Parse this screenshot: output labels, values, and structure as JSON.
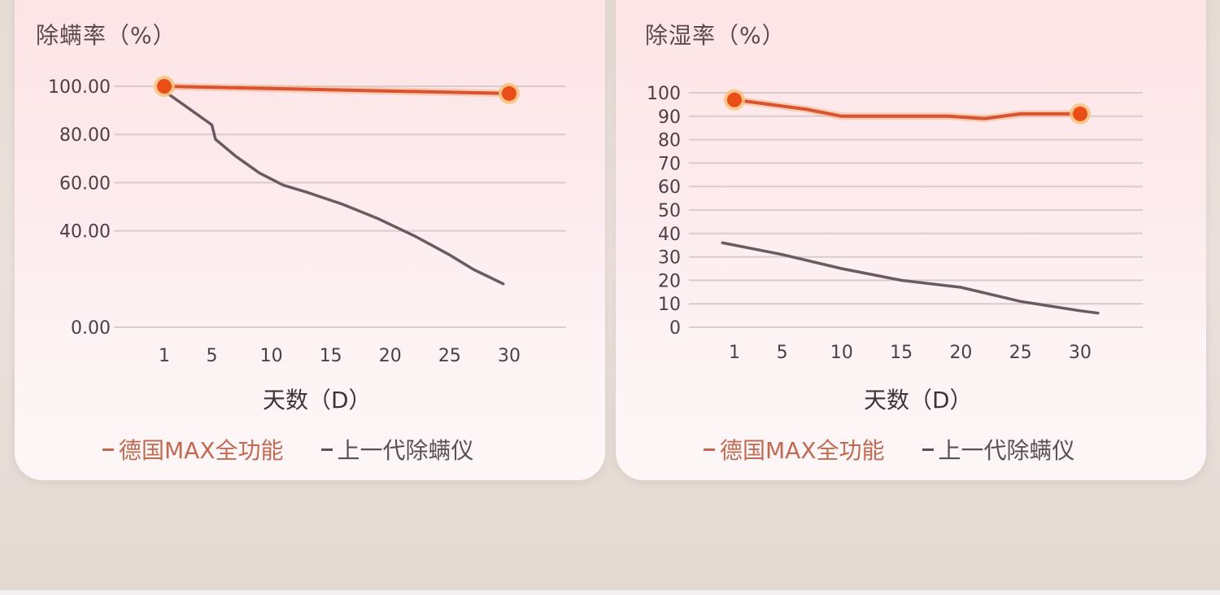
{
  "chart_data": [
    {
      "type": "line",
      "title": "除螨率（%）",
      "xlabel": "天数（D）",
      "ylabel": "除螨率（%）",
      "x_ticks": [
        "1",
        "5",
        "10",
        "15",
        "20",
        "25",
        "30"
      ],
      "y_ticks": [
        "0.00",
        "40.00",
        "60.00",
        "80.00",
        "100.00"
      ],
      "y_tick_values": [
        0,
        40,
        60,
        80,
        100
      ],
      "ylim": [
        0,
        100
      ],
      "grid": true,
      "legend_position": "bottom",
      "series": [
        {
          "name": "德国MAX全功能",
          "color": "#d9532f",
          "marker_color": "#ea4e18",
          "x": [
            1,
            30
          ],
          "values": [
            100,
            97
          ]
        },
        {
          "name": "上一代除螨仪",
          "color": "#6b5a62",
          "x": [
            1,
            3,
            5,
            5.3,
            7,
            9,
            11,
            13,
            16,
            19,
            22,
            25,
            27,
            29.5
          ],
          "values": [
            98,
            91,
            84,
            78,
            71,
            64,
            59,
            56,
            51,
            45,
            38,
            30,
            24,
            18
          ]
        }
      ]
    },
    {
      "type": "line",
      "title": "除湿率（%）",
      "xlabel": "天数（D）",
      "ylabel": "除湿率（%）",
      "x_ticks": [
        "1",
        "5",
        "10",
        "15",
        "20",
        "25",
        "30"
      ],
      "y_ticks": [
        "0",
        "10",
        "20",
        "30",
        "40",
        "50",
        "60",
        "70",
        "80",
        "90",
        "100"
      ],
      "y_tick_values": [
        0,
        10,
        20,
        30,
        40,
        50,
        60,
        70,
        80,
        90,
        100
      ],
      "ylim": [
        0,
        100
      ],
      "grid": true,
      "legend_position": "bottom",
      "series": [
        {
          "name": "德国MAX全功能",
          "color": "#d9532f",
          "marker_color": "#ea4e18",
          "x": [
            1,
            4,
            7,
            10,
            13,
            16,
            19,
            22,
            25,
            28,
            30
          ],
          "values": [
            97,
            95,
            93,
            90,
            90,
            90,
            90,
            89,
            91,
            91,
            91
          ]
        },
        {
          "name": "上一代除螨仪",
          "color": "#6b5a62",
          "x": [
            0,
            5,
            10,
            15,
            20,
            25,
            30,
            31.5
          ],
          "values": [
            36,
            31,
            25,
            20,
            17,
            11,
            7,
            6
          ]
        }
      ]
    }
  ]
}
